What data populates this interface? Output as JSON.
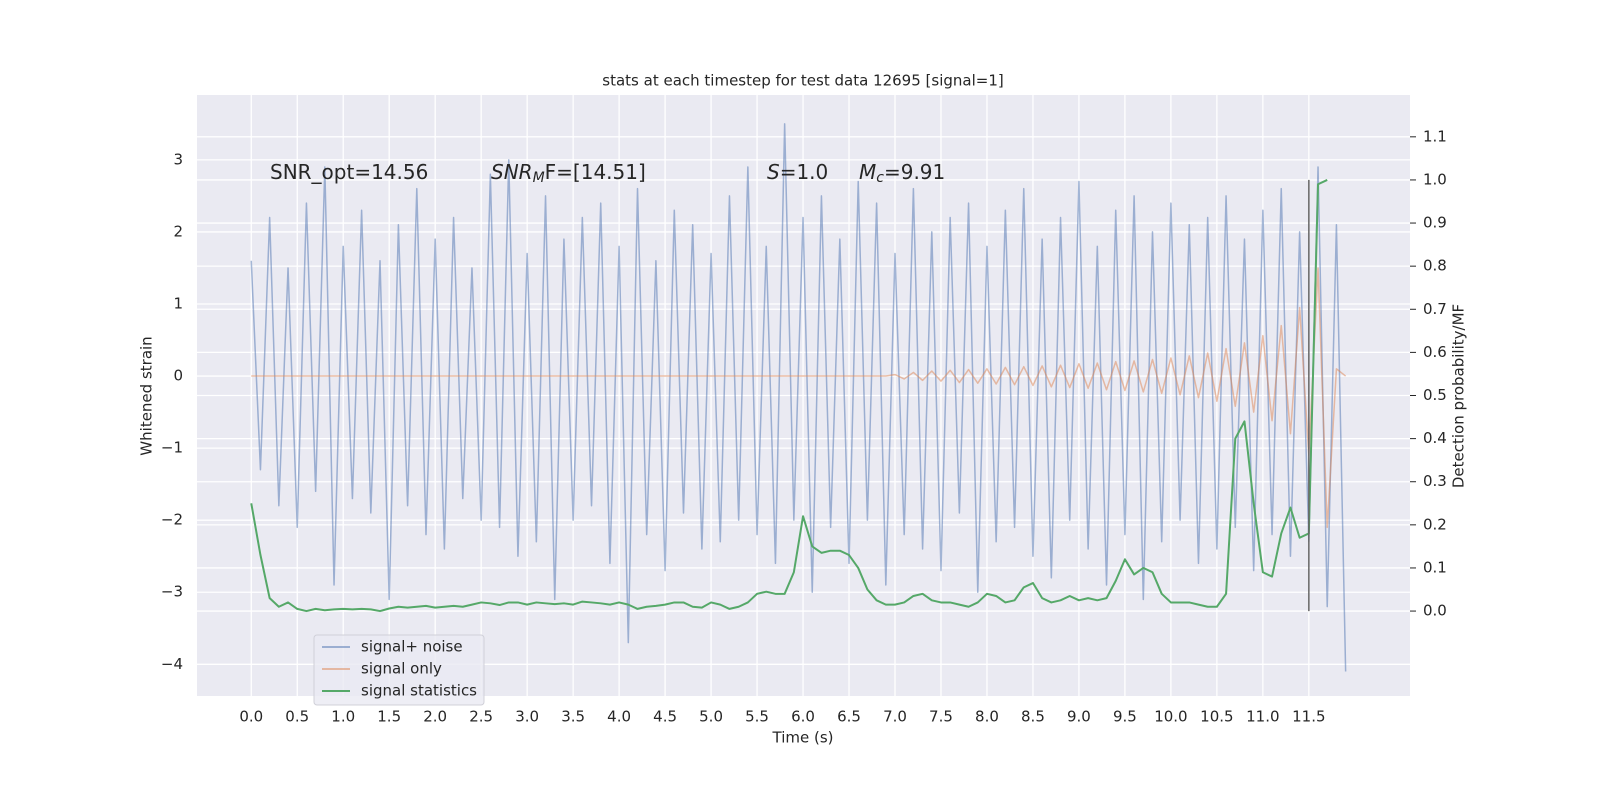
{
  "chart_data": {
    "type": "line",
    "title": "stats at each timestep for test data 12695 [signal=1]",
    "xlabel": "Time (s)",
    "ylabel": "Whitened strain",
    "y2label": "Detection probability/MF",
    "annotations": [
      {
        "rest": "SNR_opt=14.56"
      },
      {
        "italic": "SNR",
        "sub": "M",
        "rest": "F=[14.51]"
      },
      {
        "italic": "S",
        "rest": "=1.0"
      },
      {
        "italic": "M",
        "sub": "c",
        "rest": "=9.91"
      }
    ],
    "x": [
      0.0,
      0.1,
      0.2,
      0.3,
      0.4,
      0.5,
      0.6,
      0.7,
      0.8,
      0.9,
      1.0,
      1.1,
      1.2,
      1.3,
      1.4,
      1.5,
      1.6,
      1.7,
      1.8,
      1.9,
      2.0,
      2.1,
      2.2,
      2.3,
      2.4,
      2.5,
      2.6,
      2.7,
      2.8,
      2.9,
      3.0,
      3.1,
      3.2,
      3.3,
      3.4,
      3.5,
      3.6,
      3.7,
      3.8,
      3.9,
      4.0,
      4.1,
      4.2,
      4.3,
      4.4,
      4.5,
      4.6,
      4.7,
      4.8,
      4.9,
      5.0,
      5.1,
      5.2,
      5.3,
      5.4,
      5.5,
      5.6,
      5.7,
      5.8,
      5.9,
      6.0,
      6.1,
      6.2,
      6.3,
      6.4,
      6.5,
      6.6,
      6.7,
      6.8,
      6.9,
      7.0,
      7.1,
      7.2,
      7.3,
      7.4,
      7.5,
      7.6,
      7.7,
      7.8,
      7.9,
      8.0,
      8.1,
      8.2,
      8.3,
      8.4,
      8.5,
      8.6,
      8.7,
      8.8,
      8.9,
      9.0,
      9.1,
      9.2,
      9.3,
      9.4,
      9.5,
      9.6,
      9.7,
      9.8,
      9.9,
      10.0,
      10.1,
      10.2,
      10.3,
      10.4,
      10.5,
      10.6,
      10.7,
      10.8,
      10.9,
      11.0,
      11.1,
      11.2,
      11.3,
      11.4,
      11.5,
      11.6,
      11.7,
      11.8,
      11.9
    ],
    "series": [
      {
        "name": "signal+ noise",
        "color": "#4c72b0",
        "opacity": 0.5,
        "values": [
          1.6,
          -1.3,
          2.2,
          -1.8,
          1.5,
          -2.1,
          2.4,
          -1.6,
          2.9,
          -2.9,
          1.8,
          -1.7,
          2.3,
          -1.9,
          1.6,
          -3.1,
          2.1,
          -1.8,
          2.6,
          -2.2,
          1.9,
          -2.4,
          2.2,
          -1.7,
          1.5,
          -2.0,
          2.8,
          -2.1,
          3.0,
          -2.5,
          1.7,
          -2.3,
          2.5,
          -3.1,
          1.9,
          -2.0,
          2.2,
          -1.8,
          2.4,
          -2.6,
          1.8,
          -3.7,
          2.6,
          -2.2,
          1.6,
          -2.7,
          2.3,
          -1.9,
          2.1,
          -2.4,
          1.7,
          -2.3,
          2.5,
          -2.0,
          2.9,
          -2.2,
          1.8,
          -2.6,
          3.5,
          -2.0,
          2.2,
          -3.0,
          2.5,
          -2.1,
          1.9,
          -2.6,
          2.7,
          -2.0,
          2.4,
          -2.9,
          1.7,
          -2.2,
          2.6,
          -2.4,
          2.0,
          -2.7,
          2.2,
          -1.9,
          2.4,
          -3.0,
          1.8,
          -2.3,
          2.3,
          -2.1,
          2.6,
          -2.5,
          1.9,
          -2.8,
          2.2,
          -2.0,
          2.7,
          -2.4,
          1.8,
          -2.9,
          2.3,
          -2.2,
          2.5,
          -3.1,
          2.0,
          -2.3,
          2.4,
          -2.0,
          2.1,
          -2.6,
          2.2,
          -2.4,
          2.5,
          -2.1,
          1.9,
          -2.7,
          2.3,
          -2.2,
          2.6,
          -2.5,
          2.0,
          -2.3,
          2.9,
          -3.2,
          2.1,
          -4.1
        ]
      },
      {
        "name": "signal only",
        "color": "#dd8452",
        "opacity": 0.5,
        "values": [
          0,
          0,
          0,
          0,
          0,
          0,
          0,
          0,
          0,
          0,
          0,
          0,
          0,
          0,
          0,
          0,
          0,
          0,
          0,
          0,
          0,
          0,
          0,
          0,
          0,
          0,
          0,
          0,
          0,
          0,
          0,
          0,
          0,
          0,
          0,
          0,
          0,
          0,
          0,
          0,
          0,
          0,
          0,
          0,
          0,
          0,
          0,
          0,
          0,
          0,
          0,
          0,
          0,
          0,
          0,
          0,
          0,
          0,
          0,
          0,
          0,
          0,
          0,
          0,
          0,
          0,
          0,
          0,
          0,
          0,
          0.02,
          -0.04,
          0.05,
          -0.06,
          0.07,
          -0.07,
          0.08,
          -0.09,
          0.09,
          -0.1,
          0.1,
          -0.11,
          0.12,
          -0.12,
          0.13,
          -0.13,
          0.14,
          -0.15,
          0.15,
          -0.16,
          0.17,
          -0.17,
          0.18,
          -0.19,
          0.2,
          -0.2,
          0.21,
          -0.22,
          0.23,
          -0.24,
          0.25,
          -0.26,
          0.28,
          -0.3,
          0.32,
          -0.35,
          0.38,
          -0.42,
          0.46,
          -0.5,
          0.56,
          -0.62,
          0.7,
          -0.8,
          0.95,
          -1.1,
          1.5,
          -2.1,
          0.1,
          0
        ]
      },
      {
        "name": "signal statistics",
        "color": "#55a868",
        "opacity": 1,
        "axis": "y2",
        "values": [
          0.25,
          0.13,
          0.03,
          0.01,
          0.02,
          0.005,
          0.0,
          0.005,
          0.002,
          0.004,
          0.005,
          0.004,
          0.005,
          0.004,
          0.0,
          0.006,
          0.01,
          0.008,
          0.01,
          0.012,
          0.008,
          0.01,
          0.012,
          0.01,
          0.015,
          0.02,
          0.018,
          0.014,
          0.02,
          0.02,
          0.015,
          0.02,
          0.018,
          0.016,
          0.018,
          0.015,
          0.022,
          0.02,
          0.018,
          0.015,
          0.02,
          0.015,
          0.005,
          0.01,
          0.012,
          0.015,
          0.02,
          0.02,
          0.01,
          0.008,
          0.02,
          0.015,
          0.005,
          0.01,
          0.02,
          0.04,
          0.045,
          0.04,
          0.04,
          0.09,
          0.22,
          0.15,
          0.135,
          0.14,
          0.14,
          0.13,
          0.1,
          0.05,
          0.025,
          0.015,
          0.015,
          0.02,
          0.035,
          0.04,
          0.025,
          0.02,
          0.02,
          0.015,
          0.01,
          0.02,
          0.04,
          0.035,
          0.02,
          0.025,
          0.055,
          0.065,
          0.03,
          0.02,
          0.025,
          0.035,
          0.025,
          0.03,
          0.025,
          0.03,
          0.07,
          0.12,
          0.085,
          0.1,
          0.09,
          0.04,
          0.02,
          0.02,
          0.02,
          0.015,
          0.01,
          0.01,
          0.04,
          0.4,
          0.44,
          0.25,
          0.09,
          0.08,
          0.18,
          0.24,
          0.17,
          0.18,
          0.99,
          1.0,
          null,
          null
        ]
      }
    ],
    "vline": {
      "x": 11.5,
      "y2": [
        0,
        1
      ],
      "color": "#666666"
    },
    "xlim": [
      -0.59,
      12.6
    ],
    "ylim": [
      -4.44,
      3.9
    ],
    "y2lim": [
      -0.197,
      1.197
    ],
    "xticks": [
      {
        "value": 0,
        "label": "0.0"
      },
      {
        "value": 0.5,
        "label": "0.5"
      },
      {
        "value": 1,
        "label": "1.0"
      },
      {
        "value": 1.5,
        "label": "1.5"
      },
      {
        "value": 2,
        "label": "2.0"
      },
      {
        "value": 2.5,
        "label": "2.5"
      },
      {
        "value": 3,
        "label": "3.0"
      },
      {
        "value": 3.5,
        "label": "3.5"
      },
      {
        "value": 4,
        "label": "4.0"
      },
      {
        "value": 4.5,
        "label": "4.5"
      },
      {
        "value": 5,
        "label": "5.0"
      },
      {
        "value": 5.5,
        "label": "5.5"
      },
      {
        "value": 6,
        "label": "6.0"
      },
      {
        "value": 6.5,
        "label": "6.5"
      },
      {
        "value": 7,
        "label": "7.0"
      },
      {
        "value": 7.5,
        "label": "7.5"
      },
      {
        "value": 8,
        "label": "8.0"
      },
      {
        "value": 8.5,
        "label": "8.5"
      },
      {
        "value": 9,
        "label": "9.0"
      },
      {
        "value": 9.5,
        "label": "9.5"
      },
      {
        "value": 10,
        "label": "10.0"
      },
      {
        "value": 10.5,
        "label": "10.5"
      },
      {
        "value": 11,
        "label": "11.0"
      },
      {
        "value": 11.5,
        "label": "11.5"
      }
    ],
    "yticks": [
      {
        "value": -4,
        "label": "−4"
      },
      {
        "value": -3,
        "label": "−3"
      },
      {
        "value": -2,
        "label": "−2"
      },
      {
        "value": -1,
        "label": "−1"
      },
      0,
      1,
      2,
      3
    ],
    "y2ticks": [
      {
        "value": 0,
        "label": "0.0"
      },
      {
        "value": 0.1,
        "label": "0.1"
      },
      {
        "value": 0.2,
        "label": "0.2"
      },
      {
        "value": 0.3,
        "label": "0.3"
      },
      {
        "value": 0.4,
        "label": "0.4"
      },
      {
        "value": 0.5,
        "label": "0.5"
      },
      {
        "value": 0.6,
        "label": "0.6"
      },
      {
        "value": 0.7,
        "label": "0.7"
      },
      {
        "value": 0.8,
        "label": "0.8"
      },
      {
        "value": 0.9,
        "label": "0.9"
      },
      {
        "value": 1,
        "label": "1.0"
      },
      {
        "value": 1.1,
        "label": "1.1"
      }
    ],
    "grid": true,
    "legend": "lower left"
  }
}
